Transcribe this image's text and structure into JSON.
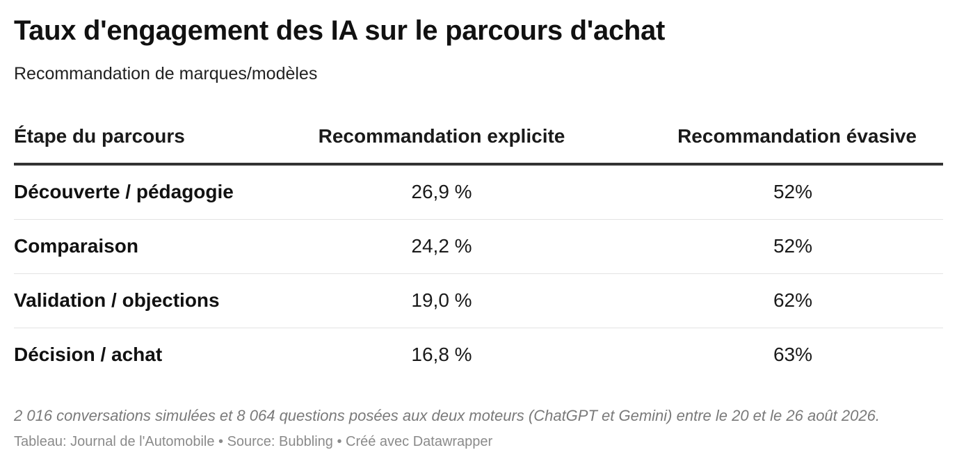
{
  "title": "Taux d'engagement des IA sur le parcours d'achat",
  "subtitle": "Recommandation de marques/modèles",
  "chart_data": {
    "type": "table",
    "columns": [
      "Étape du parcours",
      "Recommandation explicite",
      "Recommandation évasive"
    ],
    "rows": [
      [
        "Découverte / pédagogie",
        "26,9 %",
        "52%"
      ],
      [
        "Comparaison",
        "24,2 %",
        "52%"
      ],
      [
        "Validation / objections",
        "19,0 %",
        "62%"
      ],
      [
        "Décision / achat",
        "16,8 %",
        "63%"
      ]
    ]
  },
  "notes": "2 016 conversations simulées et 8 064 questions posées aux deux moteurs (ChatGPT et Gemini) entre le 20 et le 26 août 2026.",
  "footer": "Tableau: Journal de l'Automobile • Source: Bubbling • Créé avec Datawrapper"
}
